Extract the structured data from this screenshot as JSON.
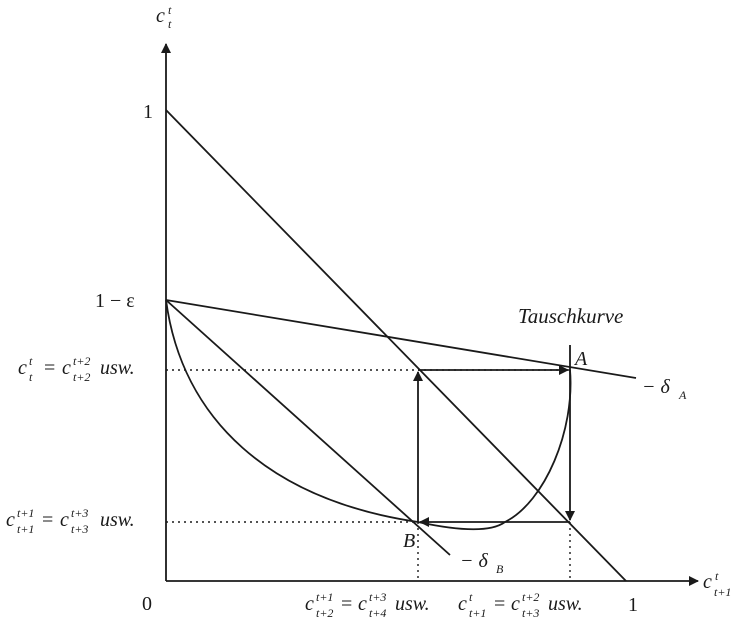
{
  "axes": {
    "y_symbol": {
      "base": "c",
      "sup": "t",
      "sub": "t"
    },
    "x_symbol": {
      "base": "c",
      "sup": "t",
      "sub": "t+1"
    },
    "origin": "0",
    "y_one": "1",
    "x_one": "1",
    "y_one_minus_eps": "1 − ε"
  },
  "labels": {
    "tauschkurve": "Tauschkurve",
    "point_a": "A",
    "point_b": "B",
    "delta_a": {
      "prefix": "− δ",
      "sub": "A"
    },
    "delta_b": {
      "prefix": "− δ",
      "sub": "B"
    }
  },
  "y_annotations": {
    "upper": {
      "lhs_sup": "t",
      "lhs_sub": "t",
      "eq": "=",
      "rhs_sup": "t+2",
      "rhs_sub": "t+2",
      "suffix": "usw."
    },
    "lower": {
      "lhs_sup": "t+1",
      "lhs_sub": "t+1",
      "eq": "=",
      "rhs_sup": "t+3",
      "rhs_sub": "t+3",
      "suffix": "usw."
    }
  },
  "x_annotations": {
    "left": {
      "lhs_sup": "t+1",
      "lhs_sub": "t+2",
      "eq": "=",
      "rhs_sup": "t+3",
      "rhs_sub": "t+4",
      "suffix": "usw."
    },
    "right": {
      "lhs_sup": "t",
      "lhs_sub": "t+1",
      "eq": "=",
      "rhs_sup": "t+2",
      "rhs_sub": "t+3",
      "suffix": "usw."
    }
  },
  "c_glyph": "c"
}
